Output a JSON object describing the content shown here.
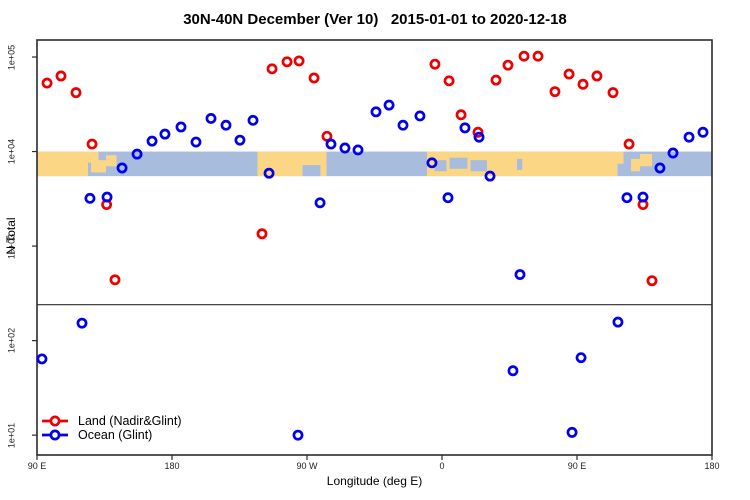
{
  "chart_data": {
    "type": "scatter",
    "title": "30N-40N December (Ver 10)   2015-01-01 to 2020-12-18",
    "xlabel": "Longitude (deg E)",
    "ylabel": "N Total",
    "grid": false,
    "legend_position": "bottom-left",
    "x_axis": {
      "min": 90,
      "max": 540,
      "ticks": [
        {
          "pos": 90,
          "label": "90 E"
        },
        {
          "pos": 180,
          "label": "180"
        },
        {
          "pos": 270,
          "label": "90 W"
        },
        {
          "pos": 360,
          "label": "0"
        },
        {
          "pos": 450,
          "label": "90 E"
        },
        {
          "pos": 540,
          "label": "180"
        }
      ]
    },
    "y_axis": {
      "scale": "log10",
      "exp_min": 0.79,
      "exp_max": 5.18,
      "ticks": [
        {
          "exp": 1,
          "label": "1e+01"
        },
        {
          "exp": 2,
          "label": "1e+02"
        },
        {
          "exp": 3,
          "label": "1e+03"
        },
        {
          "exp": 4,
          "label": "1e+04"
        },
        {
          "exp": 5,
          "label": "1e+05"
        }
      ]
    },
    "reference_line": {
      "value": 240
    },
    "map_strip": {
      "description": "land/ocean geography band for 30N-40N latitude zone",
      "exp_top": 4.0,
      "exp_bottom": 3.74,
      "ocean_color": "#a8bdde",
      "land_color": "#fbd685",
      "land_patches": [
        {
          "from": 90,
          "to": 124,
          "top": 0,
          "bottom": 1
        },
        {
          "from": 124,
          "to": 131,
          "top": 0,
          "bottom": 0.45
        },
        {
          "from": 126,
          "to": 136,
          "top": 0.35,
          "bottom": 0.85
        },
        {
          "from": 136,
          "to": 143,
          "top": 0.15,
          "bottom": 0.6
        },
        {
          "from": 237,
          "to": 283,
          "top": 0,
          "bottom": 1
        },
        {
          "from": 350,
          "to": 477,
          "top": 0,
          "bottom": 1
        },
        {
          "from": 477,
          "to": 481,
          "top": 0,
          "bottom": 0.5
        },
        {
          "from": 486,
          "to": 492,
          "top": 0.3,
          "bottom": 0.8
        },
        {
          "from": 492,
          "to": 500,
          "top": 0.1,
          "bottom": 0.6
        }
      ],
      "ocean_patches": [
        {
          "from": 267,
          "to": 279,
          "top": 0.55,
          "bottom": 1
        },
        {
          "from": 355,
          "to": 363,
          "top": 0.35,
          "bottom": 0.8
        },
        {
          "from": 365,
          "to": 377,
          "top": 0.25,
          "bottom": 0.7
        },
        {
          "from": 379,
          "to": 390,
          "top": 0.35,
          "bottom": 0.8
        },
        {
          "from": 410,
          "to": 413.5,
          "top": 0.3,
          "bottom": 0.75
        }
      ]
    },
    "marker": {
      "shape": "open-circle",
      "radius": 4.1,
      "stroke_width": 2.7
    },
    "series": [
      {
        "name": "Land (Nadir&Glint)",
        "color": "#ee0000",
        "points": [
          [
            96.7,
            53000
          ],
          [
            106,
            63000
          ],
          [
            116,
            42000
          ],
          [
            126.7,
            12000
          ],
          [
            136.4,
            2750
          ],
          [
            142,
            440
          ],
          [
            240,
            1350
          ],
          [
            246.7,
            75000
          ],
          [
            256.7,
            89000
          ],
          [
            264.7,
            91000
          ],
          [
            274.7,
            60000
          ],
          [
            283.3,
            14500
          ],
          [
            355.3,
            84000
          ],
          [
            364.7,
            56000
          ],
          [
            372.7,
            24500
          ],
          [
            384,
            16000
          ],
          [
            396,
            57000
          ],
          [
            404,
            82000
          ],
          [
            414.7,
            102000
          ],
          [
            424,
            102000
          ],
          [
            435.3,
            43000
          ],
          [
            444.7,
            66000
          ],
          [
            454,
            51500
          ],
          [
            463.3,
            63000
          ],
          [
            474,
            42000
          ],
          [
            484.7,
            12000
          ],
          [
            494,
            2750
          ],
          [
            500,
            430
          ]
        ]
      },
      {
        "name": "Ocean (Glint)",
        "color": "#0000ee",
        "points": [
          [
            93.3,
            64
          ],
          [
            120,
            153
          ],
          [
            125.3,
            3200
          ],
          [
            136.7,
            3300
          ],
          [
            146.7,
            6700
          ],
          [
            156.7,
            9400
          ],
          [
            166.7,
            12900
          ],
          [
            175.3,
            15300
          ],
          [
            186,
            18200
          ],
          [
            196,
            12600
          ],
          [
            206,
            22400
          ],
          [
            216,
            19000
          ],
          [
            225.3,
            13200
          ],
          [
            234,
            21400
          ],
          [
            244.7,
            5900
          ],
          [
            264,
            10
          ],
          [
            278.7,
            2870
          ],
          [
            286,
            12000
          ],
          [
            295.3,
            10900
          ],
          [
            304,
            10400
          ],
          [
            316,
            26300
          ],
          [
            324.7,
            31000
          ],
          [
            334,
            19000
          ],
          [
            345.3,
            23800
          ],
          [
            353.3,
            7600
          ],
          [
            364,
            3250
          ],
          [
            375.3,
            17800
          ],
          [
            384.7,
            14200
          ],
          [
            392,
            5500
          ],
          [
            407.3,
            48
          ],
          [
            412,
            500
          ],
          [
            446.7,
            10.7
          ],
          [
            452.7,
            66
          ],
          [
            477.3,
            157
          ],
          [
            483.3,
            3250
          ],
          [
            494,
            3300
          ],
          [
            505.3,
            6700
          ],
          [
            514,
            9650
          ],
          [
            524.7,
            14200
          ],
          [
            534,
            16000
          ]
        ]
      }
    ]
  }
}
